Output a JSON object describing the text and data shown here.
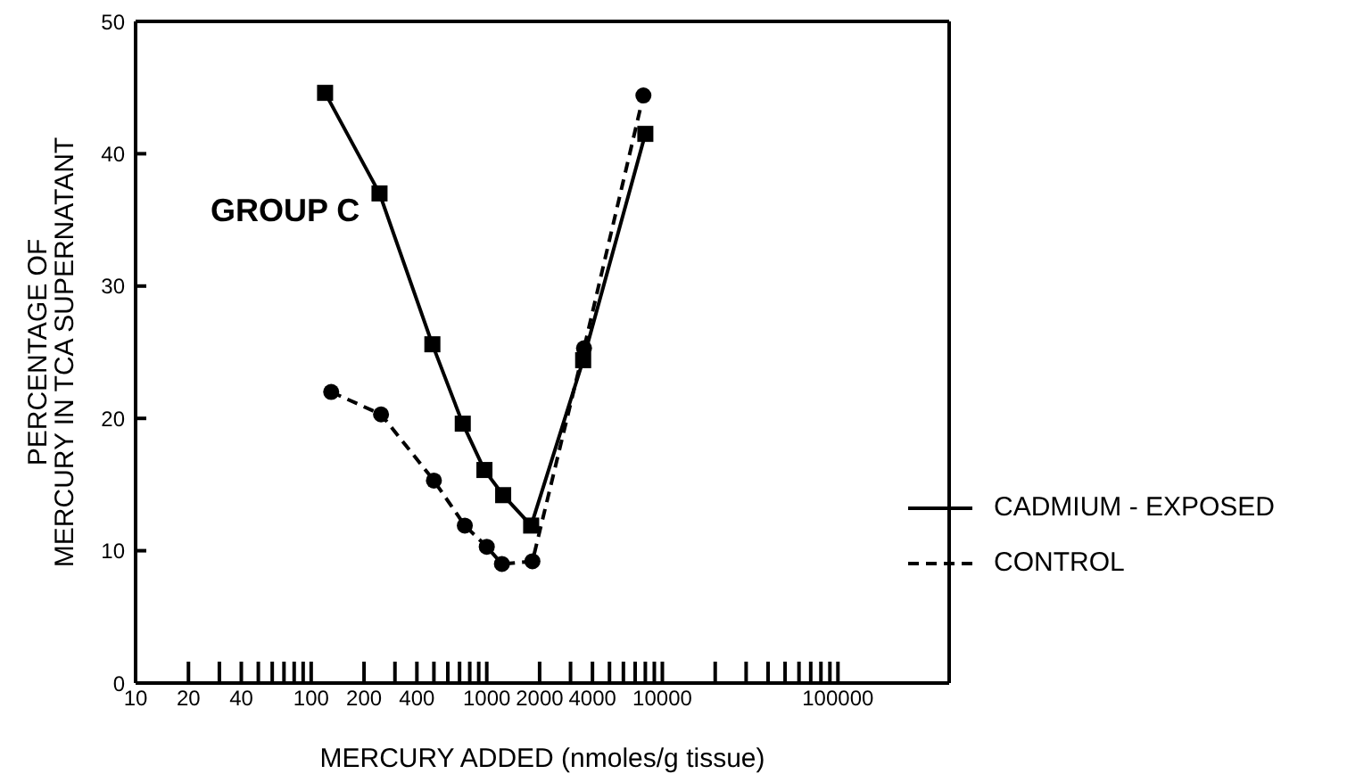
{
  "chart_data": {
    "type": "line",
    "xlabel": "MERCURY ADDED (nmoles/g tissue)",
    "ylabel": "PERCENTAGE OF\nMERCURY IN TCA SUPERNATANT",
    "annotations": [
      "GROUP C"
    ],
    "log": "x",
    "legend": "right",
    "xlim": [
      10,
      430000
    ],
    "xticks": [
      10,
      20,
      {
        "value": 30,
        "label": null
      },
      40,
      {
        "value": 50,
        "label": null
      },
      {
        "value": 60,
        "label": null
      },
      {
        "value": 70,
        "label": null
      },
      {
        "value": 80,
        "label": null
      },
      {
        "value": 90,
        "label": null
      },
      100,
      200,
      {
        "value": 300,
        "label": null
      },
      400,
      {
        "value": 500,
        "label": null
      },
      {
        "value": 600,
        "label": null
      },
      {
        "value": 700,
        "label": null
      },
      {
        "value": 800,
        "label": null
      },
      {
        "value": 900,
        "label": null
      },
      1000,
      2000,
      {
        "value": 3000,
        "label": null
      },
      4000,
      {
        "value": 5000,
        "label": null
      },
      {
        "value": 6000,
        "label": null
      },
      {
        "value": 7000,
        "label": null
      },
      {
        "value": 8000,
        "label": null
      },
      {
        "value": 9000,
        "label": null
      },
      10000,
      {
        "value": 20000,
        "label": null
      },
      {
        "value": 30000,
        "label": null
      },
      {
        "value": 40000,
        "label": null
      },
      {
        "value": 50000,
        "label": null
      },
      {
        "value": 60000,
        "label": null
      },
      {
        "value": 70000,
        "label": null
      },
      {
        "value": 80000,
        "label": null
      },
      {
        "value": 90000,
        "label": null
      },
      100000
    ],
    "ylim": [
      0,
      50
    ],
    "yticks": [
      0,
      10,
      20,
      30,
      40,
      50
    ],
    "series": [
      {
        "name": "CADMIUM - EXPOSED",
        "color": "#000000",
        "marker": "square",
        "line_style": "solid",
        "x": [
          120,
          245,
          490,
          730,
          970,
          1240,
          1790,
          3540,
          8000
        ],
        "values": [
          44.6,
          37.0,
          25.6,
          19.6,
          16.1,
          14.2,
          11.9,
          24.4,
          41.5
        ]
      },
      {
        "name": "CONTROL",
        "color": "#000000",
        "marker": "circle",
        "line_style": "dashed",
        "x": [
          130,
          250,
          500,
          750,
          1000,
          1220,
          1820,
          3580,
          7800
        ],
        "values": [
          22.0,
          20.3,
          15.3,
          11.9,
          10.3,
          9.0,
          9.2,
          25.3,
          44.4
        ]
      }
    ]
  }
}
